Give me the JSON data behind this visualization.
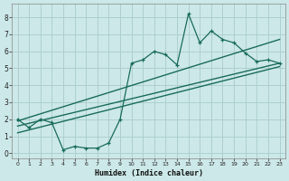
{
  "xlabel": "Humidex (Indice chaleur)",
  "bg_color": "#cce8e8",
  "grid_color": "#aacccc",
  "line_color": "#1a6b5a",
  "xlim": [
    -0.5,
    23.5
  ],
  "ylim": [
    -0.3,
    8.8
  ],
  "xticks": [
    0,
    1,
    2,
    3,
    4,
    5,
    6,
    7,
    8,
    9,
    10,
    11,
    12,
    13,
    14,
    15,
    16,
    17,
    18,
    19,
    20,
    21,
    22,
    23
  ],
  "yticks": [
    0,
    1,
    2,
    3,
    4,
    5,
    6,
    7,
    8
  ],
  "main_x": [
    0,
    1,
    2,
    3,
    4,
    5,
    6,
    7,
    8,
    9,
    10,
    11,
    12,
    13,
    14,
    15,
    16,
    17,
    18,
    19,
    20,
    21,
    22,
    23
  ],
  "main_y": [
    2.0,
    1.5,
    2.0,
    1.8,
    0.2,
    0.4,
    0.3,
    0.3,
    0.6,
    2.0,
    5.3,
    5.5,
    6.0,
    5.8,
    5.2,
    8.2,
    6.5,
    7.2,
    6.7,
    6.5,
    5.9,
    5.4,
    5.5,
    5.3
  ],
  "line1_x": [
    0,
    23
  ],
  "line1_y": [
    1.9,
    6.7
  ],
  "line2_x": [
    0,
    23
  ],
  "line2_y": [
    1.6,
    5.3
  ],
  "line3_x": [
    0,
    23
  ],
  "line3_y": [
    1.2,
    5.1
  ]
}
